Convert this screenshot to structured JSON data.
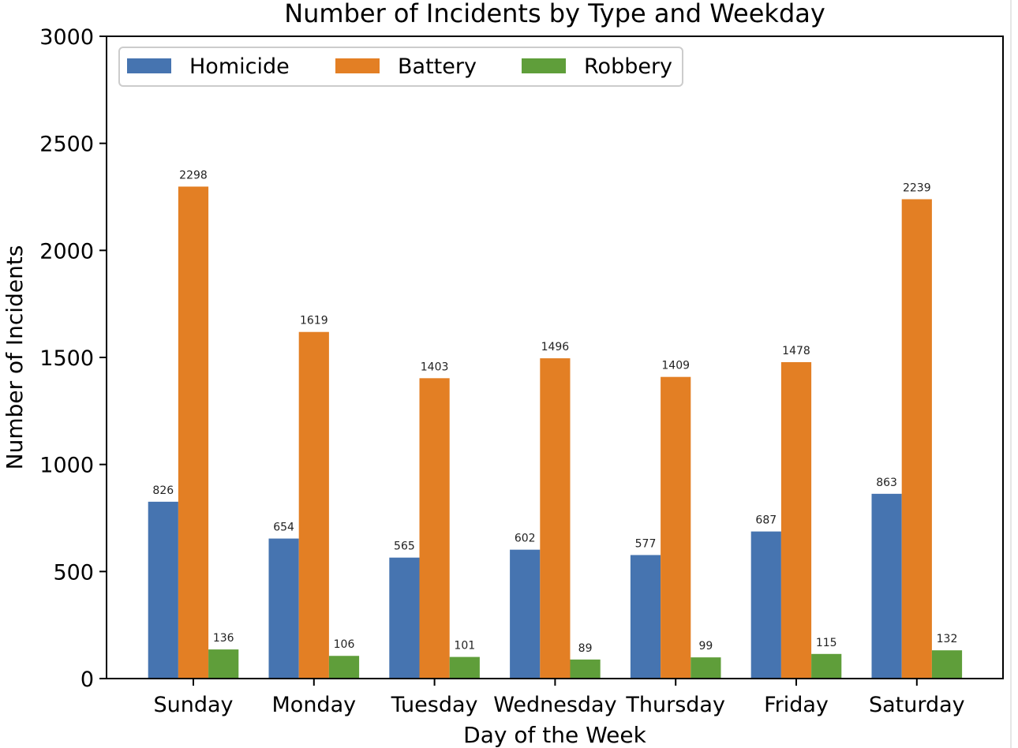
{
  "chart_data": {
    "type": "bar",
    "title": "Number of Incidents by Type and Weekday",
    "xlabel": "Day of the Week",
    "ylabel": "Number of Incidents",
    "categories": [
      "Sunday",
      "Monday",
      "Tuesday",
      "Wednesday",
      "Thursday",
      "Friday",
      "Saturday"
    ],
    "ylim": [
      0,
      3000
    ],
    "yticks": [
      0,
      500,
      1000,
      1500,
      2000,
      2500,
      3000
    ],
    "grid": false,
    "legend_position": "top-left",
    "series": [
      {
        "name": "Homicide",
        "color": "#4674b0",
        "values": [
          826,
          654,
          565,
          602,
          577,
          687,
          863
        ]
      },
      {
        "name": "Battery",
        "color": "#e37f24",
        "values": [
          2298,
          1619,
          1403,
          1496,
          1409,
          1478,
          2239
        ]
      },
      {
        "name": "Robbery",
        "color": "#5f9e3a",
        "values": [
          136,
          106,
          101,
          89,
          99,
          115,
          132
        ]
      }
    ]
  }
}
